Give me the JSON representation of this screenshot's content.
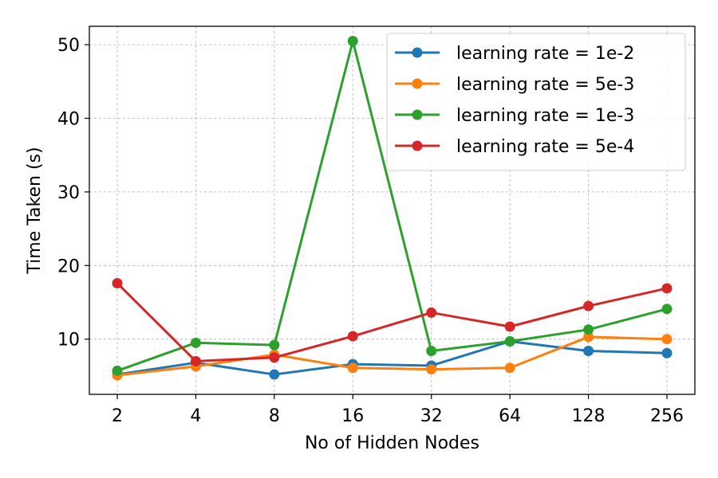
{
  "chart_data": {
    "type": "line",
    "xlabel": "No of Hidden Nodes",
    "ylabel": "Time Taken (s)",
    "categories": [
      "2",
      "4",
      "8",
      "16",
      "32",
      "64",
      "128",
      "256"
    ],
    "ylim": [
      2.5,
      52.5
    ],
    "yticks": [
      10,
      20,
      30,
      40,
      50
    ],
    "grid": true,
    "legend_position": "top-right",
    "series": [
      {
        "name": "learning rate = 1e-2",
        "color": "#1f77b4",
        "values": [
          5.2,
          6.8,
          5.2,
          6.6,
          6.4,
          9.7,
          8.4,
          8.1
        ]
      },
      {
        "name": "learning rate = 5e-3",
        "color": "#ff7f0e",
        "values": [
          5.1,
          6.3,
          7.9,
          6.1,
          5.9,
          6.1,
          10.3,
          10.0
        ]
      },
      {
        "name": "learning rate = 1e-3",
        "color": "#2ca02c",
        "values": [
          5.7,
          9.5,
          9.2,
          50.5,
          8.4,
          9.7,
          11.3,
          14.1
        ]
      },
      {
        "name": "learning rate = 5e-4",
        "color": "#d62728",
        "values": [
          17.6,
          7.0,
          7.5,
          10.4,
          13.6,
          11.7,
          14.5,
          16.9
        ]
      }
    ]
  }
}
